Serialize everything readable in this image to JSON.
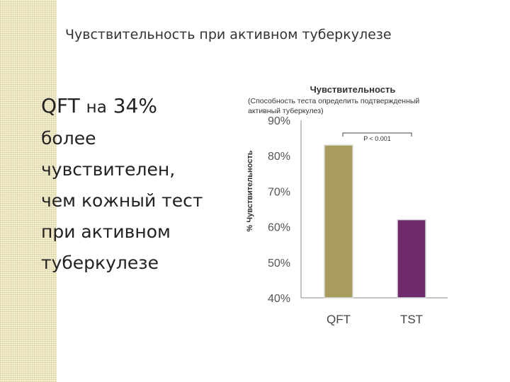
{
  "slide": {
    "title": "Чувствительность при активном туберкулезе",
    "lead_strong": "QFT",
    "lead_small": "на",
    "lead_value": "34%",
    "lines": [
      "более",
      "чувствителен,",
      "чем кожный тест",
      "при активном",
      "туберкулезе"
    ]
  },
  "chart_data": {
    "type": "bar",
    "title": "Чувствительность",
    "subtitle": [
      "(Способность теста определить подтвержденный",
      "активный туберкулез)"
    ],
    "ylabel": "% Чувствительность",
    "categories": [
      "QFT",
      "TST"
    ],
    "values": [
      83,
      62
    ],
    "ylim": [
      40,
      90
    ],
    "yticks": [
      "90%",
      "80%",
      "70%",
      "60%",
      "50%",
      "40%"
    ],
    "annotation": "P < 0.001",
    "colors": [
      "#a89c5c",
      "#6e2a6a"
    ],
    "grid": false
  }
}
